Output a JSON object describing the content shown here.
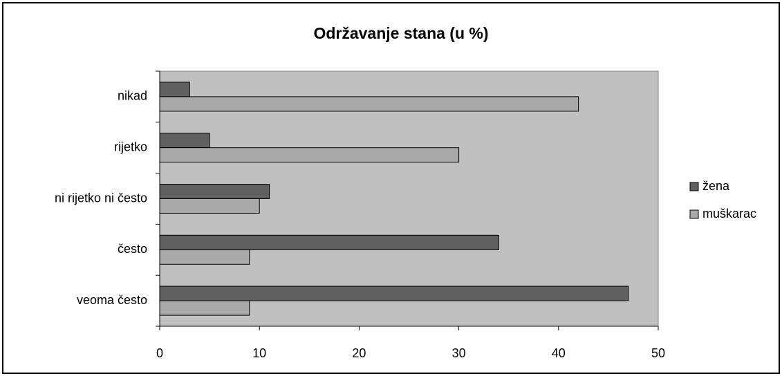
{
  "chart_data": {
    "type": "bar",
    "orientation": "horizontal",
    "title": "Održavanje stana (u %)",
    "categories": [
      "nikad",
      "rijetko",
      "ni rijetko ni često",
      "često",
      "veoma često"
    ],
    "series": [
      {
        "name": "žena",
        "color": "#606060",
        "values": [
          3,
          5,
          11,
          34,
          47
        ]
      },
      {
        "name": "muškarac",
        "color": "#a9a9a9",
        "values": [
          42,
          30,
          10,
          9,
          9
        ]
      }
    ],
    "xlim": [
      0,
      50
    ],
    "xticks": [
      0,
      10,
      20,
      30,
      40,
      50
    ],
    "grid": false,
    "legend": "right"
  }
}
